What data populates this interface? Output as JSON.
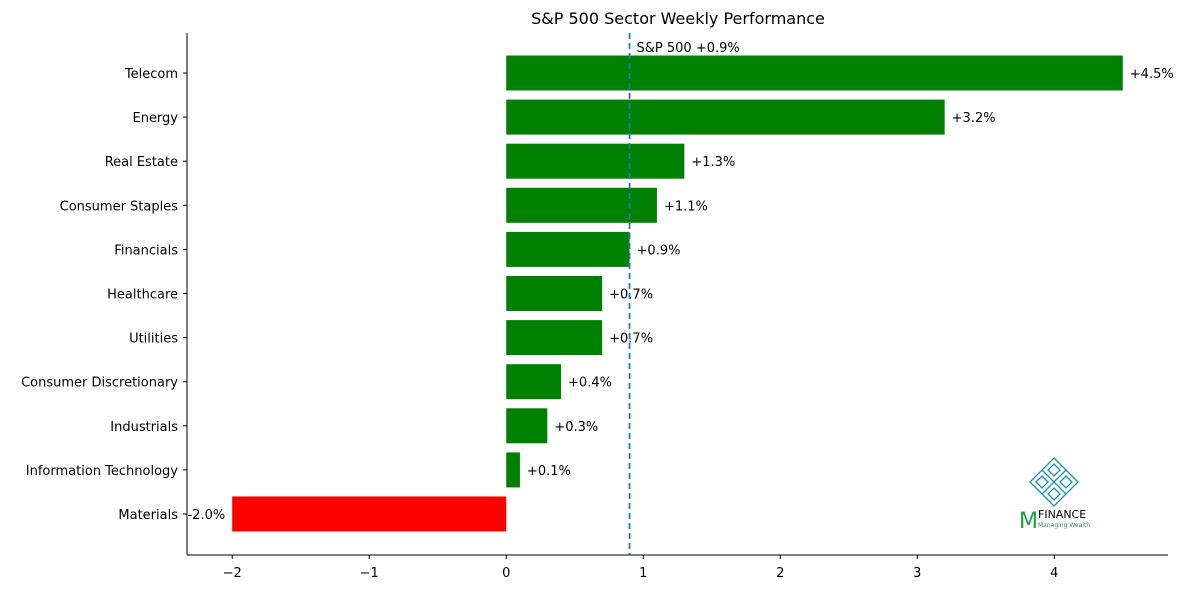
{
  "chart_data": {
    "type": "bar",
    "orientation": "horizontal",
    "title": "S&P 500 Sector Weekly Performance",
    "xlabel": "",
    "ylabel": "",
    "categories": [
      "Telecom",
      "Energy",
      "Real Estate",
      "Consumer Staples",
      "Financials",
      "Healthcare",
      "Utilities",
      "Consumer Discretionary",
      "Industrials",
      "Information Technology",
      "Materials"
    ],
    "values": [
      4.5,
      3.2,
      1.3,
      1.1,
      0.9,
      0.7,
      0.7,
      0.4,
      0.3,
      0.1,
      -2.0
    ],
    "data_labels": [
      "+4.5%",
      "+3.2%",
      "+1.3%",
      "+1.1%",
      "+0.9%",
      "+0.7%",
      "+0.7%",
      "+0.4%",
      "+0.3%",
      "+0.1%",
      "-2.0%"
    ],
    "xticks": [
      -2,
      -1,
      0,
      1,
      2,
      3,
      4
    ],
    "xtick_labels": [
      "−2",
      "−1",
      "0",
      "1",
      "2",
      "3",
      "4"
    ],
    "xlim": [
      -2.33,
      4.83
    ],
    "grid": false,
    "positive_color": "#008000",
    "negative_color": "#ff0000",
    "reference_line": {
      "value": 0.9,
      "label": "S&P 500 +0.9%",
      "color": "#1f77b4",
      "style": "dashed"
    }
  },
  "logo": {
    "letter": "M",
    "word": "FINANCE",
    "tagline": "Managing Wealth",
    "knot_color": "#1a8fb0",
    "letter_color": "#1a9a4a"
  }
}
